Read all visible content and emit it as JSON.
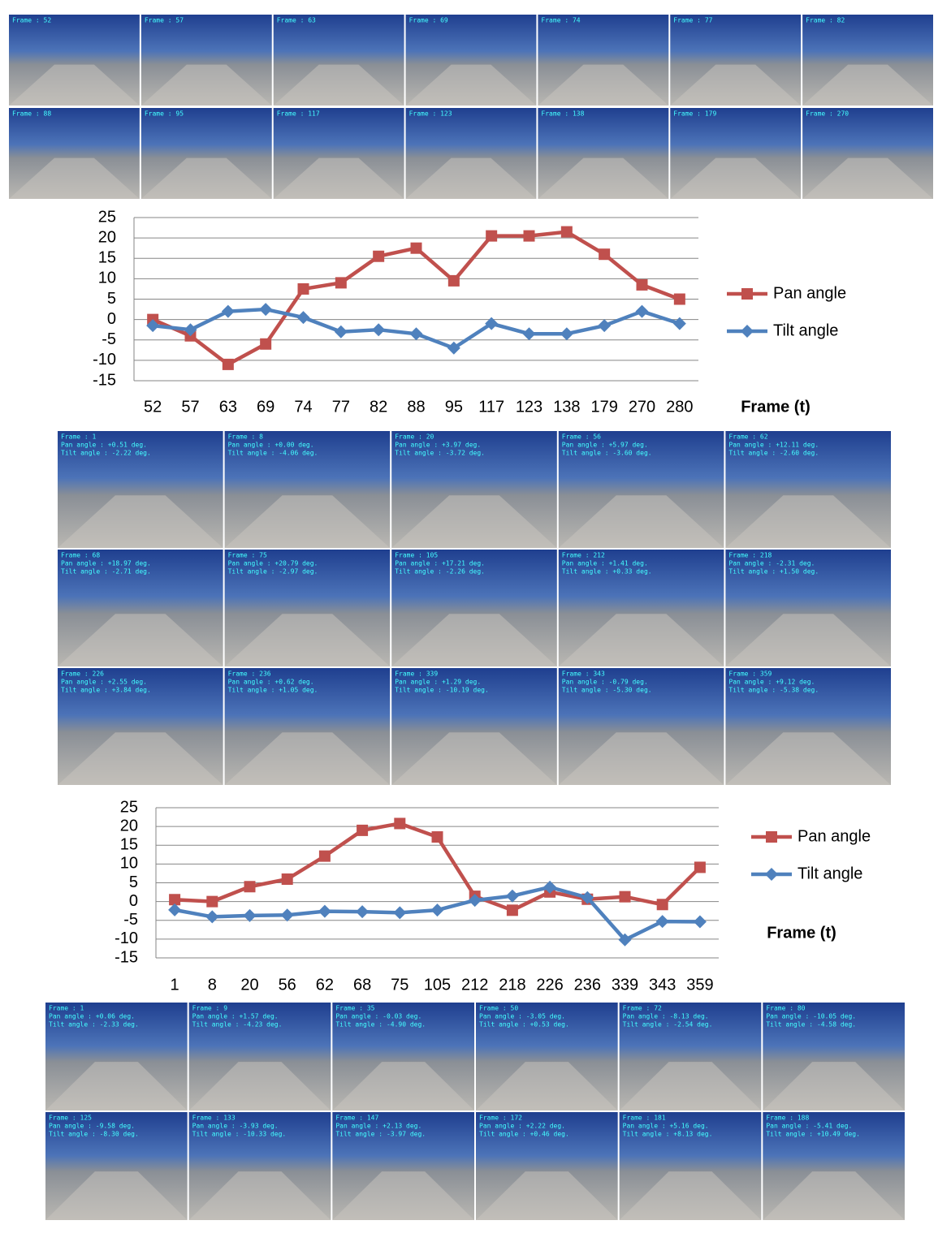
{
  "chart_data": [
    {
      "type": "line",
      "categories": [
        "52",
        "57",
        "63",
        "69",
        "74",
        "77",
        "82",
        "88",
        "95",
        "117",
        "123",
        "138",
        "179",
        "270",
        "280"
      ],
      "x_label": "Frame (t)",
      "ylim": [
        -15,
        25
      ],
      "yticks": [
        -15,
        -10,
        -5,
        0,
        5,
        10,
        15,
        20,
        25
      ],
      "grid": true,
      "series": [
        {
          "name": "Pan angle",
          "color": "#c0504d",
          "marker": "square",
          "values": [
            0,
            -4,
            -11,
            -6,
            7.5,
            9,
            15.5,
            17.5,
            9.5,
            20.5,
            20.5,
            21.5,
            16,
            8.5,
            5
          ]
        },
        {
          "name": "Tilt angle",
          "color": "#4f81bd",
          "marker": "diamond",
          "values": [
            -1.5,
            -2.5,
            2,
            2.5,
            0.5,
            -3,
            -2.5,
            -3.5,
            -7,
            -1,
            -3.5,
            -3.5,
            -1.5,
            2,
            -1
          ]
        }
      ]
    },
    {
      "type": "line",
      "categories": [
        "1",
        "8",
        "20",
        "56",
        "62",
        "68",
        "75",
        "105",
        "212",
        "218",
        "226",
        "236",
        "339",
        "343",
        "359"
      ],
      "x_label": "Frame (t)",
      "ylim": [
        -15,
        25
      ],
      "yticks": [
        -15,
        -10,
        -5,
        0,
        5,
        10,
        15,
        20,
        25
      ],
      "grid": true,
      "series": [
        {
          "name": "Pan angle",
          "color": "#c0504d",
          "marker": "square",
          "values": [
            0.51,
            0,
            3.97,
            5.97,
            12.11,
            18.97,
            20.79,
            17.21,
            1.41,
            -2.31,
            2.55,
            0.62,
            1.29,
            -0.79,
            9.12
          ]
        },
        {
          "name": "Tilt angle",
          "color": "#4f81bd",
          "marker": "diamond",
          "values": [
            -2.22,
            -4.06,
            -3.72,
            -3.6,
            -2.6,
            -2.71,
            -2.97,
            -2.26,
            0.33,
            1.5,
            3.84,
            1.05,
            -10.19,
            -5.3,
            -5.38
          ]
        }
      ]
    }
  ],
  "grids": [
    [
      [
        "Frame : 52"
      ],
      [
        "Frame : 57"
      ],
      [
        "Frame : 63"
      ],
      [
        "Frame : 69"
      ],
      [
        "Frame : 74"
      ],
      [
        "Frame : 77"
      ],
      [
        "Frame : 82"
      ],
      [
        "Frame : 88"
      ],
      [
        "Frame : 95"
      ],
      [
        "Frame : 117"
      ],
      [
        "Frame : 123"
      ],
      [
        "Frame : 138"
      ],
      [
        "Frame : 179"
      ],
      [
        "Frame : 270"
      ]
    ],
    [
      [
        "Frame : 1",
        "Pan angle : +0.51 deg.",
        "Tilt angle : -2.22 deg."
      ],
      [
        "Frame : 8",
        "Pan angle : +0.00 deg.",
        "Tilt angle : -4.06 deg."
      ],
      [
        "Frame : 20",
        "Pan angle : +3.97 deg.",
        "Tilt angle : -3.72 deg."
      ],
      [
        "Frame : 56",
        "Pan angle : +5.97 deg.",
        "Tilt angle : -3.60 deg."
      ],
      [
        "Frame : 62",
        "Pan angle : +12.11 deg.",
        "Tilt angle : -2.60 deg."
      ],
      [
        "Frame : 68",
        "Pan angle : +18.97 deg.",
        "Tilt angle : -2.71 deg."
      ],
      [
        "Frame : 75",
        "Pan angle : +20.79 deg.",
        "Tilt angle : -2.97 deg."
      ],
      [
        "Frame : 105",
        "Pan angle : +17.21 deg.",
        "Tilt angle : -2.26 deg."
      ],
      [
        "Frame : 212",
        "Pan angle : +1.41 deg.",
        "Tilt angle : +0.33 deg."
      ],
      [
        "Frame : 218",
        "Pan angle : -2.31 deg.",
        "Tilt angle : +1.50 deg."
      ],
      [
        "Frame : 226",
        "Pan angle : +2.55 deg.",
        "Tilt angle : +3.84 deg."
      ],
      [
        "Frame : 236",
        "Pan angle : +0.62 deg.",
        "Tilt angle : +1.05 deg."
      ],
      [
        "Frame : 339",
        "Pan angle : +1.29 deg.",
        "Tilt angle : -10.19 deg."
      ],
      [
        "Frame : 343",
        "Pan angle : -0.79 deg.",
        "Tilt angle : -5.30 deg."
      ],
      [
        "Frame : 359",
        "Pan angle : +9.12 deg.",
        "Tilt angle : -5.38 deg."
      ]
    ],
    [
      [
        "Frame : 1",
        "Pan angle : +0.06 deg.",
        "Tilt angle : -2.33 deg."
      ],
      [
        "Frame : 9",
        "Pan angle : +1.57 deg.",
        "Tilt angle : -4.23 deg."
      ],
      [
        "Frame : 35",
        "Pan angle : -0.03 deg.",
        "Tilt angle : -4.90 deg."
      ],
      [
        "Frame : 50",
        "Pan angle : -3.05 deg.",
        "Tilt angle : +0.53 deg."
      ],
      [
        "Frame : 72",
        "Pan angle : -8.13 deg.",
        "Tilt angle : -2.54 deg."
      ],
      [
        "Frame : 80",
        "Pan angle : -10.05 deg.",
        "Tilt angle : -4.58 deg."
      ],
      [
        "Frame : 125",
        "Pan angle : -9.58 deg.",
        "Tilt angle : -8.30 deg."
      ],
      [
        "Frame : 133",
        "Pan angle : -3.93 deg.",
        "Tilt angle : -10.33 deg."
      ],
      [
        "Frame : 147",
        "Pan angle : +2.13 deg.",
        "Tilt angle : -3.97 deg."
      ],
      [
        "Frame : 172",
        "Pan angle : +2.22 deg.",
        "Tilt angle : +0.46 deg."
      ],
      [
        "Frame : 181",
        "Pan angle : +5.16 deg.",
        "Tilt angle : +8.13 deg."
      ],
      [
        "Frame : 188",
        "Pan angle : -5.41 deg.",
        "Tilt angle : +10.49 deg."
      ]
    ]
  ]
}
